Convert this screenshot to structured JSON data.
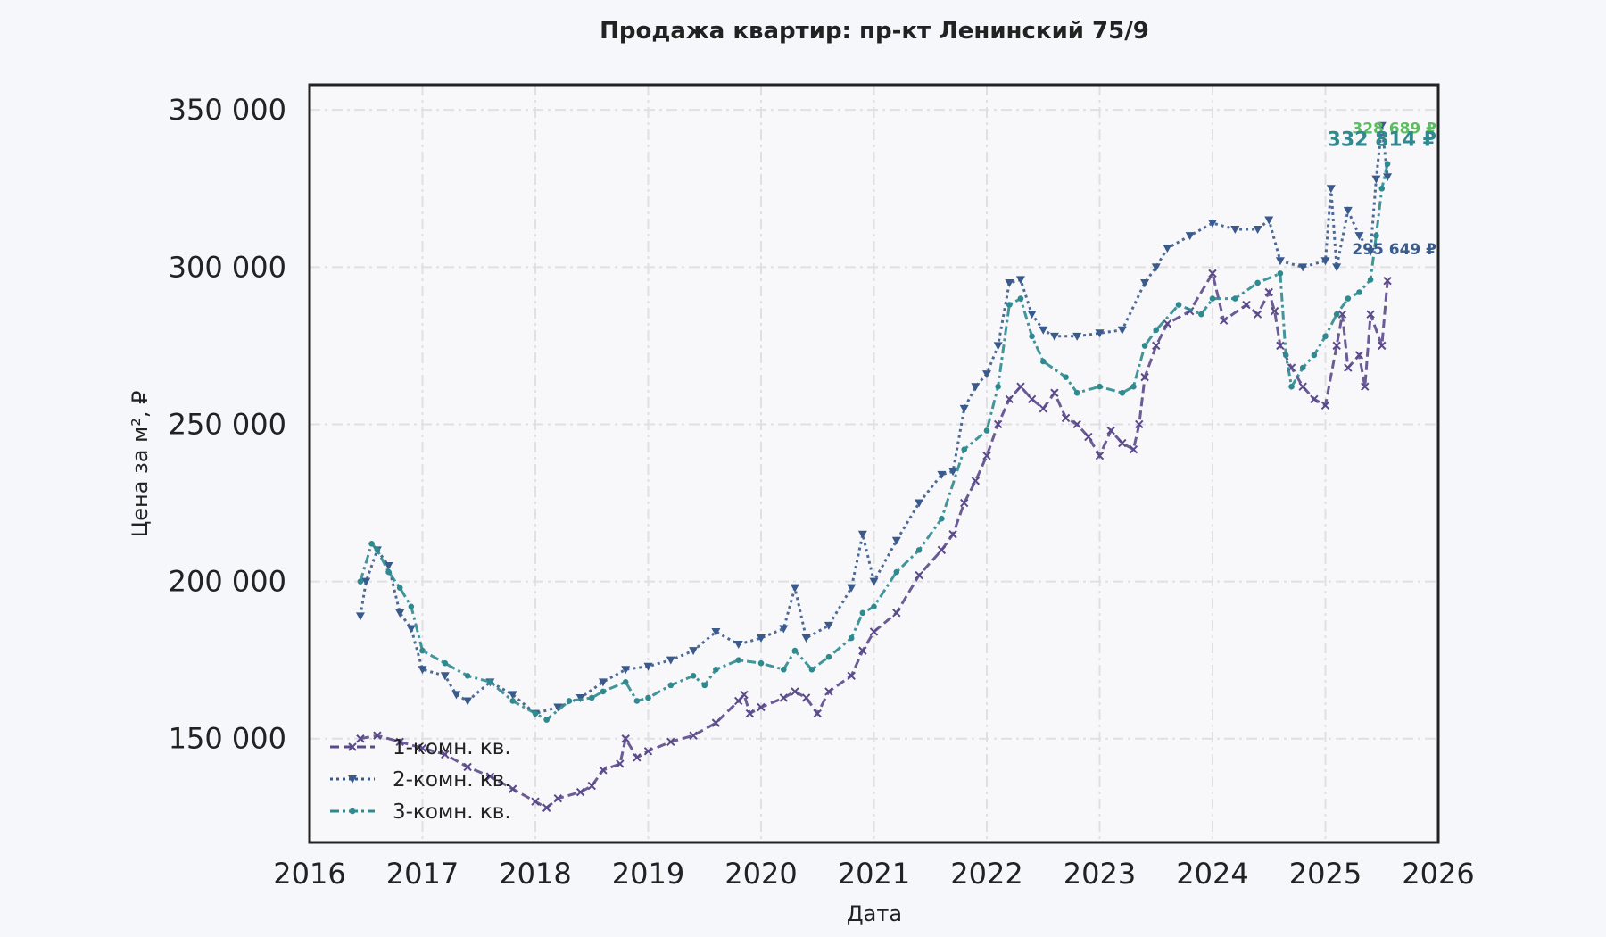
{
  "chart_data": {
    "type": "line",
    "title": "Продажа квартир: пр-кт Ленинский 75/9",
    "xlabel": "Дата",
    "ylabel": "Цена за м², ₽",
    "xlim": [
      2016,
      2026
    ],
    "ylim": [
      117000,
      358000
    ],
    "x_ticks": [
      2016,
      2017,
      2018,
      2019,
      2020,
      2021,
      2022,
      2023,
      2024,
      2025,
      2026
    ],
    "x_tick_labels": [
      "2016",
      "2017",
      "2018",
      "2019",
      "2020",
      "2021",
      "2022",
      "2023",
      "2024",
      "2025",
      "2026"
    ],
    "y_ticks": [
      150000,
      200000,
      250000,
      300000,
      350000
    ],
    "y_tick_labels": [
      "150 000",
      "200 000",
      "250 000",
      "300 000",
      "350 000"
    ],
    "grid": true,
    "legend_position": "bottom-left",
    "series": [
      {
        "name": "1-комн. кв.",
        "color": "#5b4a8b",
        "line_style": "dashed",
        "marker": "x",
        "end_label": "295 649 ₽",
        "points": [
          [
            2016.45,
            150000
          ],
          [
            2016.6,
            151000
          ],
          [
            2016.8,
            149000
          ],
          [
            2017.0,
            147000
          ],
          [
            2017.2,
            145000
          ],
          [
            2017.4,
            141000
          ],
          [
            2017.6,
            138000
          ],
          [
            2017.8,
            134000
          ],
          [
            2018.0,
            130000
          ],
          [
            2018.1,
            128000
          ],
          [
            2018.2,
            131000
          ],
          [
            2018.4,
            133000
          ],
          [
            2018.5,
            135000
          ],
          [
            2018.6,
            140000
          ],
          [
            2018.75,
            142000
          ],
          [
            2018.8,
            150000
          ],
          [
            2018.9,
            144000
          ],
          [
            2019.0,
            146000
          ],
          [
            2019.2,
            149000
          ],
          [
            2019.4,
            151000
          ],
          [
            2019.6,
            155000
          ],
          [
            2019.8,
            162000
          ],
          [
            2019.85,
            164000
          ],
          [
            2019.9,
            158000
          ],
          [
            2020.0,
            160000
          ],
          [
            2020.2,
            163000
          ],
          [
            2020.3,
            165000
          ],
          [
            2020.4,
            163000
          ],
          [
            2020.5,
            158000
          ],
          [
            2020.6,
            165000
          ],
          [
            2020.8,
            170000
          ],
          [
            2020.9,
            178000
          ],
          [
            2021.0,
            184000
          ],
          [
            2021.2,
            190000
          ],
          [
            2021.4,
            202000
          ],
          [
            2021.6,
            210000
          ],
          [
            2021.7,
            215000
          ],
          [
            2021.8,
            225000
          ],
          [
            2021.9,
            232000
          ],
          [
            2022.0,
            240000
          ],
          [
            2022.1,
            250000
          ],
          [
            2022.2,
            258000
          ],
          [
            2022.3,
            262000
          ],
          [
            2022.4,
            258000
          ],
          [
            2022.5,
            255000
          ],
          [
            2022.6,
            260000
          ],
          [
            2022.7,
            252000
          ],
          [
            2022.8,
            250000
          ],
          [
            2022.9,
            246000
          ],
          [
            2023.0,
            240000
          ],
          [
            2023.1,
            248000
          ],
          [
            2023.2,
            244000
          ],
          [
            2023.3,
            242000
          ],
          [
            2023.35,
            250000
          ],
          [
            2023.4,
            265000
          ],
          [
            2023.5,
            275000
          ],
          [
            2023.6,
            282000
          ],
          [
            2023.8,
            286000
          ],
          [
            2024.0,
            298000
          ],
          [
            2024.1,
            283000
          ],
          [
            2024.3,
            288000
          ],
          [
            2024.4,
            285000
          ],
          [
            2024.5,
            292000
          ],
          [
            2024.55,
            286000
          ],
          [
            2024.6,
            275000
          ],
          [
            2024.7,
            268000
          ],
          [
            2024.8,
            262000
          ],
          [
            2024.9,
            258000
          ],
          [
            2025.0,
            256000
          ],
          [
            2025.1,
            275000
          ],
          [
            2025.15,
            285000
          ],
          [
            2025.2,
            268000
          ],
          [
            2025.3,
            272000
          ],
          [
            2025.35,
            262000
          ],
          [
            2025.4,
            285000
          ],
          [
            2025.5,
            275000
          ],
          [
            2025.55,
            295649
          ]
        ]
      },
      {
        "name": "2-комн. кв.",
        "color": "#3a5a8c",
        "line_style": "dotted",
        "marker": "triangle-down",
        "end_label": "328 689 ₽",
        "points": [
          [
            2016.45,
            189000
          ],
          [
            2016.5,
            200000
          ],
          [
            2016.6,
            210000
          ],
          [
            2016.7,
            205000
          ],
          [
            2016.8,
            190000
          ],
          [
            2016.9,
            185000
          ],
          [
            2017.0,
            172000
          ],
          [
            2017.2,
            170000
          ],
          [
            2017.3,
            164000
          ],
          [
            2017.4,
            162000
          ],
          [
            2017.6,
            168000
          ],
          [
            2017.8,
            164000
          ],
          [
            2018.0,
            158000
          ],
          [
            2018.2,
            160000
          ],
          [
            2018.4,
            163000
          ],
          [
            2018.6,
            168000
          ],
          [
            2018.8,
            172000
          ],
          [
            2019.0,
            173000
          ],
          [
            2019.2,
            175000
          ],
          [
            2019.4,
            178000
          ],
          [
            2019.6,
            184000
          ],
          [
            2019.8,
            180000
          ],
          [
            2020.0,
            182000
          ],
          [
            2020.2,
            185000
          ],
          [
            2020.3,
            198000
          ],
          [
            2020.4,
            182000
          ],
          [
            2020.6,
            186000
          ],
          [
            2020.8,
            198000
          ],
          [
            2020.9,
            215000
          ],
          [
            2021.0,
            200000
          ],
          [
            2021.2,
            213000
          ],
          [
            2021.4,
            225000
          ],
          [
            2021.6,
            234000
          ],
          [
            2021.7,
            235000
          ],
          [
            2021.8,
            255000
          ],
          [
            2021.9,
            262000
          ],
          [
            2022.0,
            266000
          ],
          [
            2022.1,
            275000
          ],
          [
            2022.2,
            295000
          ],
          [
            2022.3,
            296000
          ],
          [
            2022.4,
            285000
          ],
          [
            2022.5,
            280000
          ],
          [
            2022.6,
            278000
          ],
          [
            2022.8,
            278000
          ],
          [
            2023.0,
            279000
          ],
          [
            2023.2,
            280000
          ],
          [
            2023.4,
            295000
          ],
          [
            2023.5,
            300000
          ],
          [
            2023.6,
            306000
          ],
          [
            2023.8,
            310000
          ],
          [
            2024.0,
            314000
          ],
          [
            2024.2,
            312000
          ],
          [
            2024.4,
            312000
          ],
          [
            2024.5,
            315000
          ],
          [
            2024.6,
            302000
          ],
          [
            2024.8,
            300000
          ],
          [
            2025.0,
            302000
          ],
          [
            2025.05,
            325000
          ],
          [
            2025.1,
            300000
          ],
          [
            2025.2,
            318000
          ],
          [
            2025.3,
            310000
          ],
          [
            2025.4,
            305000
          ],
          [
            2025.45,
            328000
          ],
          [
            2025.5,
            345000
          ],
          [
            2025.55,
            328689
          ]
        ]
      },
      {
        "name": "3-комн. кв.",
        "color": "#2e8a8f",
        "line_style": "dashdot",
        "marker": "circle",
        "end_label": "332 814 ₽",
        "points": [
          [
            2016.45,
            200000
          ],
          [
            2016.55,
            212000
          ],
          [
            2016.6,
            210000
          ],
          [
            2016.7,
            203000
          ],
          [
            2016.8,
            198000
          ],
          [
            2016.9,
            192000
          ],
          [
            2017.0,
            178000
          ],
          [
            2017.2,
            174000
          ],
          [
            2017.4,
            170000
          ],
          [
            2017.6,
            168000
          ],
          [
            2017.8,
            162000
          ],
          [
            2018.0,
            158000
          ],
          [
            2018.1,
            156000
          ],
          [
            2018.3,
            162000
          ],
          [
            2018.5,
            163000
          ],
          [
            2018.6,
            165000
          ],
          [
            2018.8,
            168000
          ],
          [
            2018.9,
            162000
          ],
          [
            2019.0,
            163000
          ],
          [
            2019.2,
            167000
          ],
          [
            2019.4,
            170000
          ],
          [
            2019.5,
            167000
          ],
          [
            2019.6,
            172000
          ],
          [
            2019.8,
            175000
          ],
          [
            2020.0,
            174000
          ],
          [
            2020.2,
            172000
          ],
          [
            2020.3,
            178000
          ],
          [
            2020.45,
            172000
          ],
          [
            2020.6,
            176000
          ],
          [
            2020.8,
            182000
          ],
          [
            2020.9,
            190000
          ],
          [
            2021.0,
            192000
          ],
          [
            2021.2,
            203000
          ],
          [
            2021.4,
            210000
          ],
          [
            2021.6,
            220000
          ],
          [
            2021.8,
            242000
          ],
          [
            2022.0,
            248000
          ],
          [
            2022.1,
            262000
          ],
          [
            2022.2,
            288000
          ],
          [
            2022.3,
            290000
          ],
          [
            2022.4,
            278000
          ],
          [
            2022.5,
            270000
          ],
          [
            2022.7,
            265000
          ],
          [
            2022.8,
            260000
          ],
          [
            2023.0,
            262000
          ],
          [
            2023.2,
            260000
          ],
          [
            2023.3,
            262000
          ],
          [
            2023.4,
            275000
          ],
          [
            2023.5,
            280000
          ],
          [
            2023.7,
            288000
          ],
          [
            2023.9,
            285000
          ],
          [
            2024.0,
            290000
          ],
          [
            2024.2,
            290000
          ],
          [
            2024.4,
            295000
          ],
          [
            2024.6,
            298000
          ],
          [
            2024.65,
            272000
          ],
          [
            2024.7,
            262000
          ],
          [
            2024.8,
            268000
          ],
          [
            2024.9,
            272000
          ],
          [
            2025.0,
            278000
          ],
          [
            2025.1,
            285000
          ],
          [
            2025.2,
            290000
          ],
          [
            2025.3,
            292000
          ],
          [
            2025.4,
            296000
          ],
          [
            2025.45,
            310000
          ],
          [
            2025.5,
            325000
          ],
          [
            2025.55,
            332814
          ]
        ]
      }
    ]
  }
}
